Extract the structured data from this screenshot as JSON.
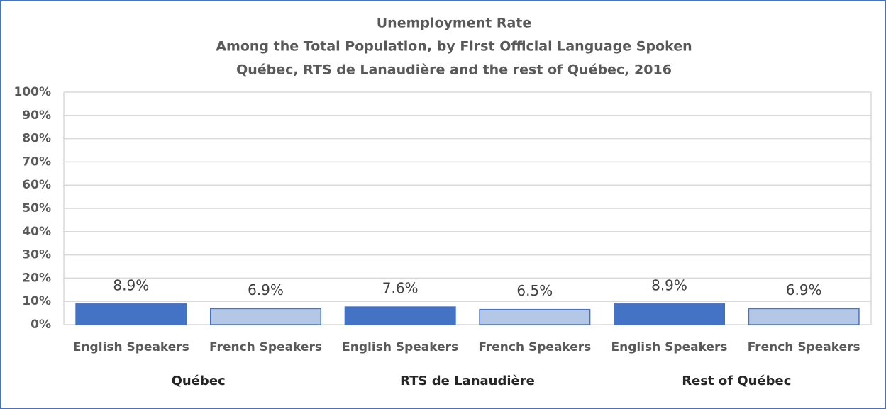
{
  "chart_data": {
    "type": "bar",
    "title": "Unemployment Rate",
    "subtitle": [
      "Among the Total Population, by First Official Language Spoken",
      "Québec, RTS de Lanaudière and the rest of Québec, 2016"
    ],
    "categories": [
      "English Speakers",
      "French Speakers",
      "English Speakers",
      "French Speakers",
      "English Speakers",
      "French Speakers"
    ],
    "groups": [
      "Québec",
      "RTS de Lanaudière",
      "Rest of Québec"
    ],
    "values": [
      8.9,
      6.9,
      7.6,
      6.5,
      8.9,
      6.9
    ],
    "value_labels": [
      "8.9%",
      "6.9%",
      "7.6%",
      "6.5%",
      "8.9%",
      "6.9%"
    ],
    "colors": [
      "#4472c4",
      "#b4c7e7",
      "#4472c4",
      "#b4c7e7",
      "#4472c4",
      "#b4c7e7"
    ],
    "ylim": [
      0,
      100
    ],
    "yticks": [
      {
        "value": 0,
        "label": "0%"
      },
      {
        "value": 10,
        "label": "10%"
      },
      {
        "value": 20,
        "label": "20%"
      },
      {
        "value": 30,
        "label": "30%"
      },
      {
        "value": 40,
        "label": "40%"
      },
      {
        "value": 50,
        "label": "50%"
      },
      {
        "value": 60,
        "label": "60%"
      },
      {
        "value": 70,
        "label": "70%"
      },
      {
        "value": 80,
        "label": "80%"
      },
      {
        "value": 90,
        "label": "90%"
      },
      {
        "value": 100,
        "label": "100%"
      }
    ],
    "grid": true
  }
}
